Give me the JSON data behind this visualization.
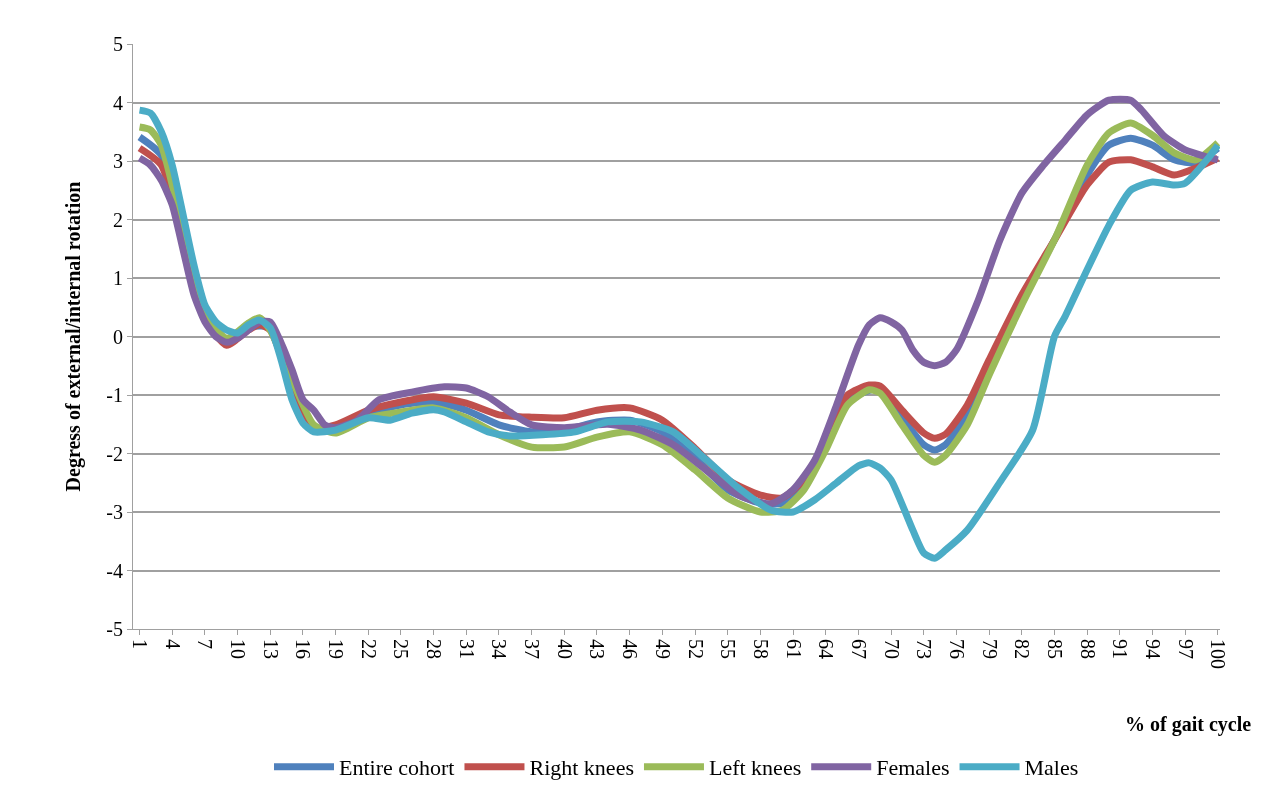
{
  "chart_data": {
    "type": "line",
    "xlabel": "% of gait cycle",
    "ylabel": "Degress of external/internal rotation",
    "xlim": [
      0.4,
      100.2
    ],
    "xticks": [
      1,
      4,
      7,
      10,
      13,
      16,
      19,
      22,
      25,
      28,
      31,
      34,
      37,
      40,
      43,
      46,
      49,
      52,
      55,
      58,
      61,
      64,
      67,
      70,
      73,
      76,
      79,
      82,
      85,
      88,
      91,
      94,
      97,
      100
    ],
    "ylim": [
      -5,
      5
    ],
    "yticks": [
      -5,
      -4,
      -3,
      -2,
      -1,
      0,
      1,
      2,
      3,
      4,
      5
    ],
    "grid": "y",
    "legend": "bottom",
    "marker": "none",
    "line_style": "solid",
    "series": [
      {
        "name": "Entire cohort",
        "color": "#4f81bd",
        "x": [
          1,
          3,
          5,
          7,
          9,
          11,
          13,
          15,
          17,
          19,
          22,
          25,
          28,
          31,
          34,
          37,
          40,
          43,
          46,
          49,
          52,
          55,
          58,
          60,
          62,
          64,
          66,
          69,
          71,
          73,
          74,
          75,
          77,
          79,
          82,
          85,
          88,
          90,
          92,
          94,
          96,
          98,
          100
        ],
        "values": [
          3.41,
          3.1,
          1.74,
          0.37,
          -0.06,
          0.16,
          0.15,
          -0.79,
          -1.54,
          -1.56,
          -1.31,
          -1.17,
          -1.12,
          -1.26,
          -1.51,
          -1.63,
          -1.6,
          -1.46,
          -1.43,
          -1.63,
          -2.08,
          -2.62,
          -2.85,
          -2.85,
          -2.54,
          -1.85,
          -1.09,
          -0.9,
          -1.39,
          -1.85,
          -1.94,
          -1.85,
          -1.34,
          -0.54,
          0.62,
          1.65,
          2.76,
          3.27,
          3.39,
          3.27,
          3.02,
          2.97,
          3.22
        ]
      },
      {
        "name": "Right knees",
        "color": "#c0504d",
        "x": [
          1,
          3,
          5,
          7,
          9,
          11,
          12,
          13,
          15,
          17,
          19,
          22,
          25,
          28,
          31,
          34,
          37,
          40,
          43,
          46,
          49,
          52,
          55,
          58,
          60,
          62,
          64,
          66,
          68,
          69,
          71,
          73,
          74,
          75,
          77,
          79,
          82,
          85,
          88,
          90,
          92,
          94,
          96,
          98,
          100
        ],
        "values": [
          3.22,
          2.93,
          1.65,
          0.32,
          -0.15,
          0.11,
          0.2,
          0.11,
          -0.83,
          -1.56,
          -1.51,
          -1.26,
          -1.12,
          -1.03,
          -1.14,
          -1.34,
          -1.38,
          -1.39,
          -1.26,
          -1.22,
          -1.43,
          -1.91,
          -2.45,
          -2.71,
          -2.76,
          -2.45,
          -1.77,
          -1.0,
          -0.83,
          -0.85,
          -1.26,
          -1.65,
          -1.74,
          -1.67,
          -1.17,
          -0.4,
          0.71,
          1.65,
          2.59,
          2.98,
          3.02,
          2.9,
          2.76,
          2.88,
          3.05
        ]
      },
      {
        "name": "Left knees",
        "color": "#9bbb59",
        "x": [
          1,
          2,
          3,
          5,
          7,
          9,
          11,
          12,
          13,
          15,
          17,
          19,
          22,
          25,
          28,
          31,
          34,
          37,
          40,
          43,
          46,
          49,
          52,
          55,
          58,
          60,
          62,
          64,
          66,
          68,
          69,
          71,
          73,
          74,
          75,
          77,
          79,
          82,
          85,
          88,
          90,
          92,
          94,
          96,
          98,
          100
        ],
        "values": [
          3.58,
          3.53,
          3.27,
          1.82,
          0.42,
          -0.03,
          0.23,
          0.32,
          0.11,
          -0.74,
          -1.51,
          -1.65,
          -1.39,
          -1.29,
          -1.22,
          -1.39,
          -1.68,
          -1.89,
          -1.89,
          -1.72,
          -1.63,
          -1.85,
          -2.28,
          -2.76,
          -3.0,
          -2.97,
          -2.62,
          -1.94,
          -1.17,
          -0.91,
          -0.97,
          -1.51,
          -2.03,
          -2.15,
          -2.03,
          -1.51,
          -0.66,
          0.54,
          1.65,
          2.93,
          3.48,
          3.65,
          3.44,
          3.14,
          3.02,
          3.31
        ]
      },
      {
        "name": "Females",
        "color": "#8064a2",
        "x": [
          1,
          2,
          3,
          4,
          5,
          6,
          7,
          8,
          9,
          10,
          11,
          12,
          13,
          14,
          15,
          16,
          17,
          18,
          19,
          21,
          23,
          26,
          29,
          31,
          33,
          35,
          37,
          40,
          44,
          47,
          50,
          53,
          56,
          59,
          61,
          63,
          65,
          67,
          68,
          69,
          70,
          71,
          72,
          73,
          74,
          75,
          76,
          78,
          80,
          82,
          84,
          86,
          88,
          90,
          92,
          93,
          95,
          97,
          99,
          100
        ],
        "values": [
          3.05,
          2.93,
          2.67,
          2.25,
          1.48,
          0.71,
          0.25,
          0.0,
          -0.1,
          -0.03,
          0.11,
          0.25,
          0.25,
          -0.11,
          -0.57,
          -1.08,
          -1.26,
          -1.51,
          -1.56,
          -1.43,
          -1.08,
          -0.95,
          -0.86,
          -0.88,
          -1.03,
          -1.29,
          -1.51,
          -1.56,
          -1.5,
          -1.6,
          -1.85,
          -2.28,
          -2.71,
          -2.86,
          -2.62,
          -2.11,
          -1.17,
          -0.15,
          0.2,
          0.32,
          0.25,
          0.11,
          -0.23,
          -0.44,
          -0.5,
          -0.44,
          -0.23,
          0.62,
          1.65,
          2.45,
          2.93,
          3.36,
          3.79,
          4.04,
          4.04,
          3.87,
          3.44,
          3.19,
          3.07,
          3.02
        ]
      },
      {
        "name": "Males",
        "color": "#4bacc6",
        "x": [
          1,
          2,
          3,
          4,
          5,
          6,
          7,
          8,
          9,
          10,
          11,
          12,
          13,
          14,
          15,
          16,
          17,
          19,
          22,
          24,
          26,
          28,
          29,
          31,
          33,
          35,
          38,
          41,
          44,
          47,
          50,
          53,
          56,
          59,
          61,
          63,
          65,
          67,
          68,
          69,
          70,
          72,
          73,
          74,
          75,
          77,
          80,
          83,
          85,
          86,
          88,
          90,
          92,
          94,
          96,
          97,
          99,
          100
        ],
        "values": [
          3.87,
          3.82,
          3.5,
          2.93,
          2.08,
          1.22,
          0.54,
          0.25,
          0.11,
          0.06,
          0.2,
          0.28,
          0.15,
          -0.4,
          -1.08,
          -1.48,
          -1.63,
          -1.6,
          -1.39,
          -1.43,
          -1.31,
          -1.25,
          -1.29,
          -1.46,
          -1.63,
          -1.7,
          -1.68,
          -1.63,
          -1.46,
          -1.46,
          -1.63,
          -2.1,
          -2.59,
          -2.97,
          -3.0,
          -2.79,
          -2.5,
          -2.21,
          -2.16,
          -2.25,
          -2.45,
          -3.31,
          -3.7,
          -3.79,
          -3.65,
          -3.31,
          -2.49,
          -1.6,
          0.0,
          0.35,
          1.14,
          1.9,
          2.5,
          2.64,
          2.59,
          2.62,
          3.02,
          3.27
        ]
      }
    ]
  }
}
